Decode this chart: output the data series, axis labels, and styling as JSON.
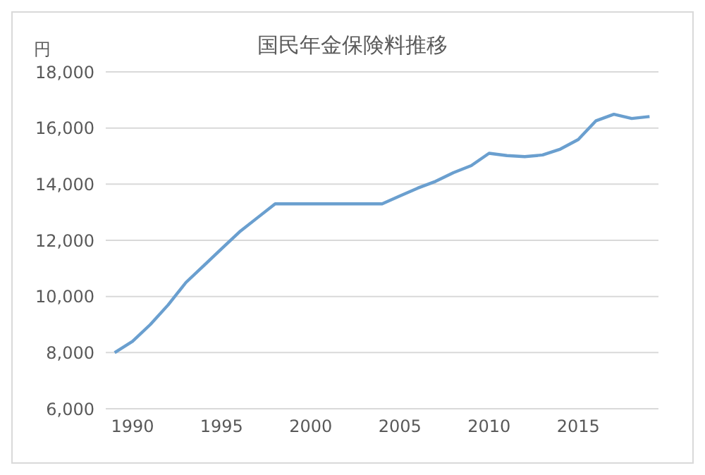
{
  "chart_data": {
    "type": "line",
    "title": "国民年金保険料推移",
    "ylabel": "円",
    "x": [
      1989,
      1990,
      1991,
      1992,
      1993,
      1994,
      1995,
      1996,
      1997,
      1998,
      1999,
      2000,
      2001,
      2002,
      2003,
      2004,
      2005,
      2006,
      2007,
      2008,
      2009,
      2010,
      2011,
      2012,
      2013,
      2014,
      2015,
      2016,
      2017,
      2018,
      2019
    ],
    "series": [
      {
        "color": "#6a9fcf",
        "values": [
          8000,
          8400,
          9000,
          9700,
          10500,
          11100,
          11700,
          12300,
          12800,
          13300,
          13300,
          13300,
          13300,
          13300,
          13300,
          13300,
          13580,
          13860,
          14100,
          14410,
          14660,
          15100,
          15020,
          14980,
          15040,
          15250,
          15590,
          16260,
          16490,
          16340,
          16410
        ]
      }
    ],
    "xlim": [
      1988.5,
      2019.5
    ],
    "xticks": [
      1990,
      1995,
      2000,
      2005,
      2010,
      2015
    ],
    "ylim": [
      6000,
      18000
    ],
    "yticks": [
      {
        "value": 6000,
        "label": "6,000"
      },
      {
        "value": 8000,
        "label": "8,000"
      },
      {
        "value": 10000,
        "label": "10,000"
      },
      {
        "value": 12000,
        "label": "12,000"
      },
      {
        "value": 14000,
        "label": "14,000"
      },
      {
        "value": 16000,
        "label": "16,000"
      },
      {
        "value": 18000,
        "label": "18,000"
      }
    ],
    "grid": "y",
    "marker": "none",
    "line_style": "solid"
  }
}
